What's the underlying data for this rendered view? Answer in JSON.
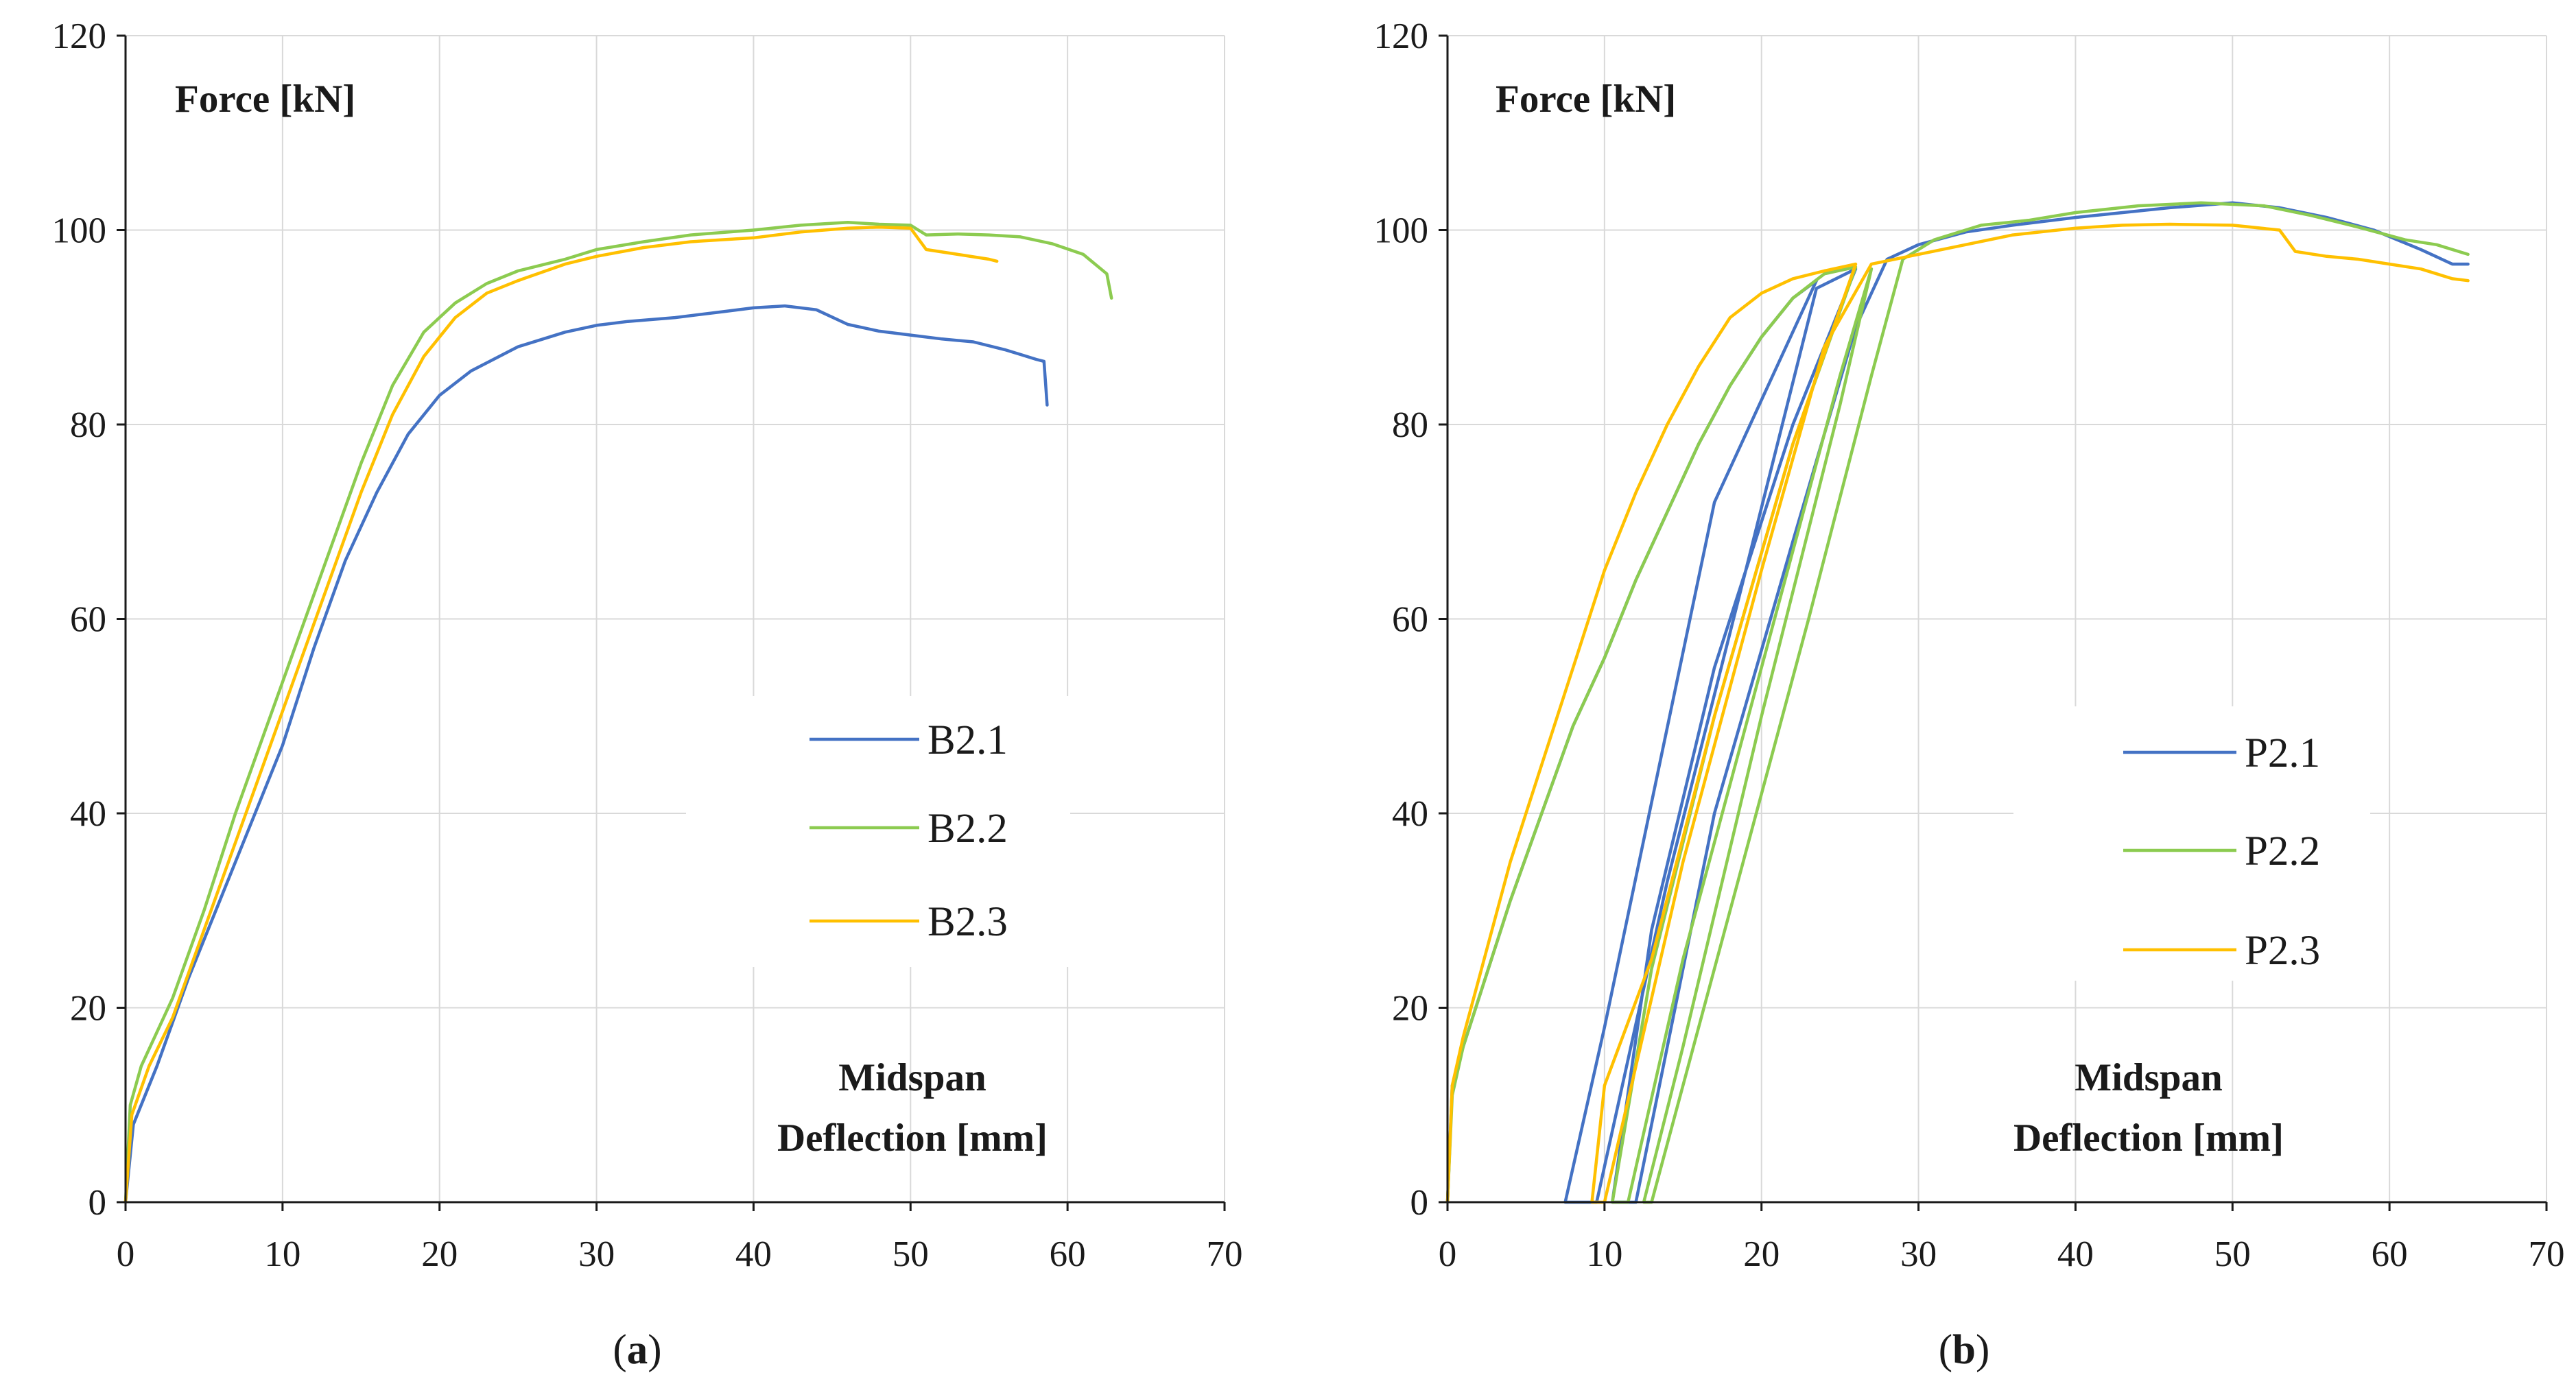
{
  "colors": {
    "blue": "#4472C4",
    "green": "#8CCB50",
    "orange": "#FFC000"
  },
  "chart_data": [
    {
      "type": "line",
      "panel_label": {
        "open": "(",
        "letter": "a",
        "close": ")"
      },
      "ylabel": "Force [kN]",
      "xlabel_line1": "Midspan",
      "xlabel_line2": "Deflection [mm]",
      "xlim": [
        0,
        70
      ],
      "ylim": [
        0,
        120
      ],
      "xticks": [
        "0",
        "10",
        "20",
        "30",
        "40",
        "50",
        "60",
        "70"
      ],
      "yticks": [
        "0",
        "20",
        "40",
        "60",
        "80",
        "100",
        "120"
      ],
      "grid": true,
      "legend_position": "center-right",
      "series": [
        {
          "name": "B2.1",
          "color": "#4472C4",
          "points": [
            [
              0,
              0
            ],
            [
              0.5,
              8
            ],
            [
              2,
              14
            ],
            [
              4,
              23
            ],
            [
              6,
              31
            ],
            [
              8,
              39
            ],
            [
              10,
              47
            ],
            [
              12,
              57
            ],
            [
              14,
              66
            ],
            [
              16,
              73
            ],
            [
              18,
              79
            ],
            [
              20,
              83
            ],
            [
              22,
              85.5
            ],
            [
              25,
              88
            ],
            [
              28,
              89.5
            ],
            [
              30,
              90.2
            ],
            [
              32,
              90.6
            ],
            [
              35,
              91
            ],
            [
              38,
              91.6
            ],
            [
              40,
              92
            ],
            [
              42,
              92.2
            ],
            [
              44,
              91.8
            ],
            [
              46,
              90.3
            ],
            [
              48,
              89.6
            ],
            [
              50,
              89.2
            ],
            [
              52,
              88.8
            ],
            [
              54,
              88.5
            ],
            [
              56,
              87.7
            ],
            [
              57,
              87.2
            ],
            [
              58,
              86.7
            ],
            [
              58.5,
              86.5
            ],
            [
              58.7,
              82
            ]
          ]
        },
        {
          "name": "B2.2",
          "color": "#8CCB50",
          "points": [
            [
              0,
              0
            ],
            [
              0.3,
              10
            ],
            [
              1,
              14
            ],
            [
              3,
              21
            ],
            [
              5,
              30
            ],
            [
              7,
              40
            ],
            [
              9,
              49
            ],
            [
              11,
              58
            ],
            [
              13,
              67
            ],
            [
              15,
              76
            ],
            [
              17,
              84
            ],
            [
              19,
              89.5
            ],
            [
              21,
              92.5
            ],
            [
              23,
              94.5
            ],
            [
              25,
              95.8
            ],
            [
              28,
              97
            ],
            [
              30,
              98
            ],
            [
              33,
              98.8
            ],
            [
              36,
              99.5
            ],
            [
              40,
              100
            ],
            [
              43,
              100.5
            ],
            [
              46,
              100.8
            ],
            [
              48,
              100.6
            ],
            [
              50,
              100.5
            ],
            [
              51,
              99.5
            ],
            [
              53,
              99.6
            ],
            [
              55,
              99.5
            ],
            [
              57,
              99.3
            ],
            [
              59,
              98.6
            ],
            [
              61,
              97.5
            ],
            [
              62.5,
              95.5
            ],
            [
              62.8,
              93
            ]
          ]
        },
        {
          "name": "B2.3",
          "color": "#FFC000",
          "points": [
            [
              0,
              0
            ],
            [
              0.4,
              9
            ],
            [
              1.5,
              14
            ],
            [
              3,
              19
            ],
            [
              5,
              28
            ],
            [
              7,
              37
            ],
            [
              9,
              46
            ],
            [
              11,
              55
            ],
            [
              13,
              64
            ],
            [
              15,
              73
            ],
            [
              17,
              81
            ],
            [
              19,
              87
            ],
            [
              21,
              91
            ],
            [
              23,
              93.5
            ],
            [
              25,
              94.8
            ],
            [
              28,
              96.5
            ],
            [
              30,
              97.3
            ],
            [
              33,
              98.2
            ],
            [
              36,
              98.8
            ],
            [
              40,
              99.2
            ],
            [
              43,
              99.8
            ],
            [
              46,
              100.2
            ],
            [
              48,
              100.3
            ],
            [
              50,
              100.2
            ],
            [
              51,
              98
            ],
            [
              53,
              97.5
            ],
            [
              55,
              97
            ],
            [
              55.5,
              96.8
            ]
          ]
        }
      ]
    },
    {
      "type": "line",
      "panel_label": {
        "open": "(",
        "letter": "b",
        "close": ")"
      },
      "ylabel": "Force [kN]",
      "xlabel_line1": "Midspan",
      "xlabel_line2": "Deflection [mm]",
      "xlim": [
        0,
        70
      ],
      "ylim": [
        0,
        120
      ],
      "xticks": [
        "0",
        "10",
        "20",
        "30",
        "40",
        "50",
        "60",
        "70"
      ],
      "yticks": [
        "0",
        "20",
        "40",
        "60",
        "80",
        "100",
        "120"
      ],
      "grid": true,
      "legend_position": "center-right",
      "series": [
        {
          "name": "P2.1",
          "color": "#4472C4",
          "points": [
            [
              0,
              0
            ],
            [
              0.3,
              12
            ],
            [
              1,
              16
            ],
            [
              2,
              21
            ],
            [
              4,
              31
            ],
            [
              6,
              40
            ],
            [
              8,
              49
            ],
            [
              10,
              56
            ],
            [
              12,
              64
            ],
            [
              14,
              71
            ],
            [
              16,
              78
            ],
            [
              18,
              84
            ],
            [
              20,
              89
            ],
            [
              22,
              93
            ],
            [
              23.5,
              94.8
            ],
            [
              17,
              72
            ],
            [
              10,
              18
            ],
            [
              7.5,
              0
            ],
            [
              9.5,
              0
            ],
            [
              14,
              33
            ],
            [
              19,
              65
            ],
            [
              23.5,
              94
            ],
            [
              26,
              96
            ],
            [
              22,
              80
            ],
            [
              17,
              55
            ],
            [
              13,
              28
            ],
            [
              10.5,
              0
            ],
            [
              12,
              0
            ],
            [
              17,
              40
            ],
            [
              22,
              68
            ],
            [
              26,
              90
            ],
            [
              28,
              97
            ],
            [
              30,
              98.5
            ],
            [
              33,
              99.8
            ],
            [
              36,
              100.5
            ],
            [
              40,
              101.3
            ],
            [
              43,
              101.8
            ],
            [
              46,
              102.3
            ],
            [
              50,
              102.8
            ],
            [
              53,
              102.3
            ],
            [
              56,
              101.3
            ],
            [
              59,
              100
            ],
            [
              62,
              98
            ],
            [
              64,
              96.5
            ],
            [
              65,
              96.5
            ]
          ]
        },
        {
          "name": "P2.2",
          "color": "#8CCB50",
          "points": [
            [
              0,
              0
            ],
            [
              0.3,
              11
            ],
            [
              1,
              16
            ],
            [
              2,
              21
            ],
            [
              4,
              31
            ],
            [
              6,
              40
            ],
            [
              8,
              49
            ],
            [
              10,
              56
            ],
            [
              12,
              64
            ],
            [
              14,
              71
            ],
            [
              16,
              78
            ],
            [
              18,
              84
            ],
            [
              20,
              89
            ],
            [
              22,
              93
            ],
            [
              24,
              95.5
            ],
            [
              26,
              96.2
            ],
            [
              22,
              78
            ],
            [
              17,
              50
            ],
            [
              13,
              24
            ],
            [
              10.5,
              0
            ],
            [
              11.5,
              0
            ],
            [
              15,
              25
            ],
            [
              20,
              55
            ],
            [
              25,
              85
            ],
            [
              27,
              96
            ],
            [
              25,
              82
            ],
            [
              20,
              50
            ],
            [
              15,
              16
            ],
            [
              12.5,
              0
            ],
            [
              13,
              0
            ],
            [
              18,
              30
            ],
            [
              23,
              60
            ],
            [
              27,
              85
            ],
            [
              29,
              97
            ],
            [
              31,
              99
            ],
            [
              34,
              100.5
            ],
            [
              37,
              101
            ],
            [
              40,
              101.8
            ],
            [
              44,
              102.5
            ],
            [
              48,
              102.8
            ],
            [
              52,
              102.5
            ],
            [
              55,
              101.5
            ],
            [
              58,
              100.3
            ],
            [
              61,
              99
            ],
            [
              63,
              98.5
            ],
            [
              65,
              97.5
            ]
          ]
        },
        {
          "name": "P2.3",
          "color": "#FFC000",
          "points": [
            [
              0,
              0
            ],
            [
              0.3,
              12
            ],
            [
              1,
              17
            ],
            [
              2,
              23
            ],
            [
              4,
              35
            ],
            [
              6,
              45
            ],
            [
              8,
              55
            ],
            [
              10,
              65
            ],
            [
              12,
              73
            ],
            [
              14,
              80
            ],
            [
              16,
              86
            ],
            [
              18,
              91
            ],
            [
              20,
              93.5
            ],
            [
              22,
              95
            ],
            [
              24,
              95.8
            ],
            [
              26,
              96.5
            ],
            [
              22,
              78
            ],
            [
              17,
              50
            ],
            [
              13,
              25
            ],
            [
              10,
              12
            ],
            [
              9.2,
              0
            ],
            [
              10,
              0
            ],
            [
              15,
              35
            ],
            [
              20,
              65
            ],
            [
              24,
              88
            ],
            [
              27,
              96.5
            ],
            [
              30,
              97.5
            ],
            [
              33,
              98.5
            ],
            [
              36,
              99.5
            ],
            [
              40,
              100.2
            ],
            [
              43,
              100.5
            ],
            [
              46,
              100.6
            ],
            [
              50,
              100.5
            ],
            [
              53,
              100
            ],
            [
              54,
              97.8
            ],
            [
              56,
              97.3
            ],
            [
              58,
              97
            ],
            [
              60,
              96.5
            ],
            [
              62,
              96
            ],
            [
              64,
              95
            ],
            [
              65,
              94.8
            ]
          ]
        }
      ]
    }
  ]
}
